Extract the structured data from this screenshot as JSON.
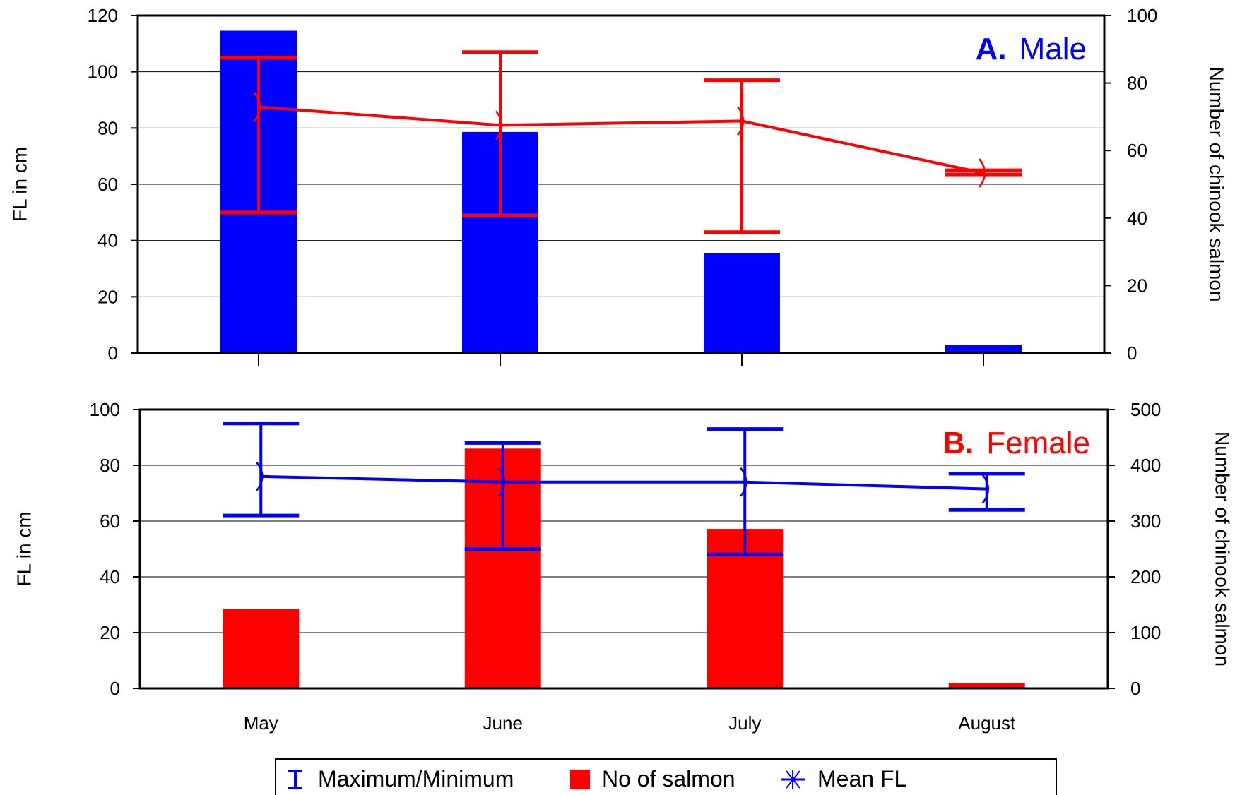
{
  "chart_data": [
    {
      "type": "bar",
      "panel_label": "A.",
      "panel_name": "Male",
      "categories": [
        "May",
        "June",
        "July",
        "August"
      ],
      "ylabel": "FL in cm",
      "y2label": "Number of chinook salmon",
      "ylim": [
        0,
        120
      ],
      "y2lim": [
        0,
        100
      ],
      "y_ticks": [
        0,
        20,
        40,
        60,
        80,
        100,
        120
      ],
      "y2_ticks": [
        0,
        20,
        40,
        60,
        80,
        100
      ],
      "grid": true,
      "bar_axis": "right",
      "bar_color": "#0000ff",
      "line_color": "#ff0000",
      "label_color": "#0000ff",
      "series": [
        {
          "name": "No of salmon",
          "kind": "bar",
          "values": [
            95.5,
            65.5,
            29.5,
            2.5
          ]
        },
        {
          "name": "Mean FL",
          "kind": "line",
          "values": [
            87.5,
            81,
            82.5,
            64
          ]
        },
        {
          "name": "Maximum/Minimum",
          "kind": "errorbar",
          "max": [
            105,
            107,
            97,
            65
          ],
          "min": [
            50,
            49,
            43,
            63.5
          ]
        }
      ]
    },
    {
      "type": "bar",
      "panel_label": "B.",
      "panel_name": "Female",
      "categories": [
        "May",
        "June",
        "July",
        "August"
      ],
      "ylabel": "FL in cm",
      "y2label": "Number of chinook salmon",
      "ylim": [
        0,
        100
      ],
      "y2lim": [
        0,
        500
      ],
      "y_ticks": [
        0,
        20,
        40,
        60,
        80,
        100
      ],
      "y2_ticks": [
        0,
        100,
        200,
        300,
        400,
        500
      ],
      "grid": true,
      "bar_axis": "right",
      "bar_color": "#ff0000",
      "line_color": "#0000ff",
      "label_color": "#ff0000",
      "series": [
        {
          "name": "No of salmon",
          "kind": "bar",
          "values": [
            143,
            430,
            286,
            10
          ]
        },
        {
          "name": "Mean FL",
          "kind": "line",
          "values": [
            76,
            74,
            74,
            71.5
          ]
        },
        {
          "name": "Maximum/Minimum",
          "kind": "errorbar",
          "max": [
            95,
            88,
            93,
            77
          ],
          "min": [
            62,
            50,
            48,
            64
          ]
        }
      ]
    }
  ],
  "legend": {
    "position": "bottom",
    "items": [
      {
        "label": "Maximum/Minimum",
        "icon": "errorbar-icon",
        "color": "#0000ff"
      },
      {
        "label": "No of salmon",
        "icon": "bar-swatch-icon",
        "color": "#ff0000"
      },
      {
        "label": "Mean FL",
        "icon": "mean-line-icon",
        "color": "#0000ff"
      }
    ]
  }
}
